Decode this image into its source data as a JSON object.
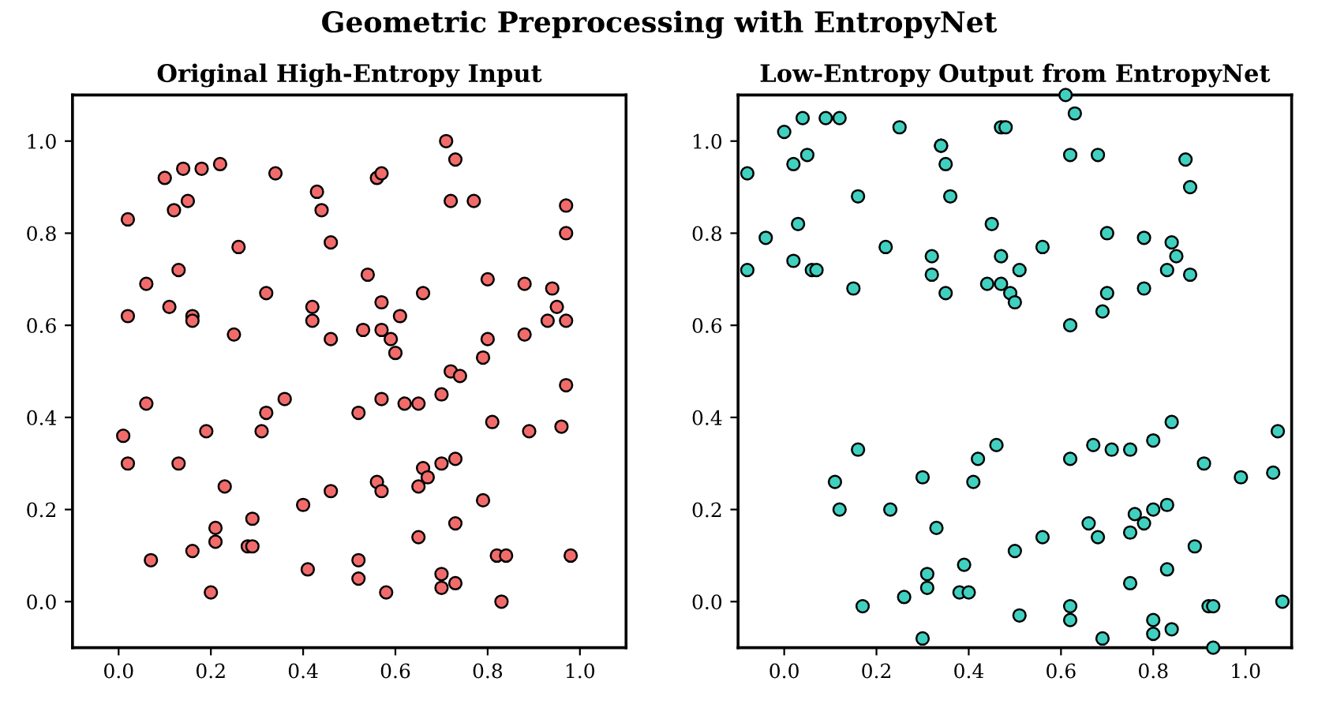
{
  "chart_data": [
    {
      "type": "scatter",
      "title": "Original High-Entropy Input",
      "annotations": [
        "Geometric Preprocessing with EntropyNet"
      ],
      "marker": "circle",
      "xlim": [
        -0.1,
        1.1
      ],
      "ylim": [
        -0.1,
        1.1
      ],
      "xticks": [
        {
          "value": 0,
          "label": "0.0"
        },
        {
          "value": 0.2,
          "label": "0.2"
        },
        {
          "value": 0.4,
          "label": "0.4"
        },
        {
          "value": 0.6,
          "label": "0.6"
        },
        {
          "value": 0.8,
          "label": "0.8"
        },
        {
          "value": 1,
          "label": "1.0"
        }
      ],
      "yticks": [
        {
          "value": 0,
          "label": "0.0"
        },
        {
          "value": 0.2,
          "label": "0.2"
        },
        {
          "value": 0.4,
          "label": "0.4"
        },
        {
          "value": 0.6,
          "label": "0.6"
        },
        {
          "value": 0.8,
          "label": "0.8"
        },
        {
          "value": 1,
          "label": "1.0"
        }
      ],
      "series": [
        {
          "color": "#f26b6b",
          "x": [
            0.2,
            0.28,
            0.29,
            0.29,
            0.23,
            0.19,
            0.13,
            0.02,
            0.01,
            0.06,
            0.31,
            0.32,
            0.36,
            0.4,
            0.41,
            0.46,
            0.46,
            0.25,
            0.42,
            0.42,
            0.32,
            0.16,
            0.16,
            0.11,
            0.02,
            0.06,
            0.13,
            0.26,
            0.46,
            0.44,
            0.43,
            0.34,
            0.22,
            0.18,
            0.14,
            0.1,
            0.15,
            0.12,
            0.02,
            0.21,
            0.21,
            0.16,
            0.07,
            0.71,
            0.73,
            0.56,
            0.57,
            0.72,
            0.77,
            0.97,
            0.97,
            0.54,
            0.8,
            0.88,
            0.94,
            0.95,
            0.66,
            0.57,
            0.61,
            0.53,
            0.57,
            0.59,
            0.6,
            0.93,
            0.97,
            0.88,
            0.8,
            0.79,
            0.72,
            0.74,
            0.97,
            0.7,
            0.65,
            0.62,
            0.57,
            0.52,
            0.81,
            0.89,
            0.96,
            0.73,
            0.7,
            0.66,
            0.67,
            0.65,
            0.56,
            0.57,
            0.79,
            0.73,
            0.65,
            0.52,
            0.52,
            0.82,
            0.84,
            0.98,
            0.7,
            0.7,
            0.73,
            0.58,
            0.83
          ],
          "values": [
            0.02,
            0.12,
            0.12,
            0.18,
            0.25,
            0.37,
            0.3,
            0.3,
            0.36,
            0.43,
            0.37,
            0.41,
            0.44,
            0.21,
            0.07,
            0.24,
            0.57,
            0.58,
            0.64,
            0.61,
            0.67,
            0.62,
            0.61,
            0.64,
            0.62,
            0.69,
            0.72,
            0.77,
            0.78,
            0.85,
            0.89,
            0.93,
            0.95,
            0.94,
            0.94,
            0.92,
            0.87,
            0.85,
            0.83,
            0.16,
            0.13,
            0.11,
            0.09,
            1.0,
            0.96,
            0.92,
            0.93,
            0.87,
            0.87,
            0.86,
            0.8,
            0.71,
            0.7,
            0.69,
            0.68,
            0.64,
            0.67,
            0.65,
            0.62,
            0.59,
            0.59,
            0.57,
            0.54,
            0.61,
            0.61,
            0.58,
            0.57,
            0.53,
            0.5,
            0.49,
            0.47,
            0.45,
            0.43,
            0.43,
            0.44,
            0.41,
            0.39,
            0.37,
            0.38,
            0.31,
            0.3,
            0.29,
            0.27,
            0.25,
            0.26,
            0.24,
            0.22,
            0.17,
            0.14,
            0.09,
            0.05,
            0.1,
            0.1,
            0.1,
            0.06,
            0.03,
            0.04,
            0.02,
            0.0
          ]
        }
      ]
    },
    {
      "type": "scatter",
      "title": "Low-Entropy Output from EntropyNet",
      "marker": "circle",
      "xlim": [
        -0.1,
        1.1
      ],
      "ylim": [
        -0.1,
        1.1
      ],
      "xticks": [
        {
          "value": 0,
          "label": "0.0"
        },
        {
          "value": 0.2,
          "label": "0.2"
        },
        {
          "value": 0.4,
          "label": "0.4"
        },
        {
          "value": 0.6,
          "label": "0.6"
        },
        {
          "value": 0.8,
          "label": "0.8"
        },
        {
          "value": 1,
          "label": "1.0"
        }
      ],
      "yticks": [
        {
          "value": 0,
          "label": "0.0"
        },
        {
          "value": 0.2,
          "label": "0.2"
        },
        {
          "value": 0.4,
          "label": "0.4"
        },
        {
          "value": 0.6,
          "label": "0.6"
        },
        {
          "value": 0.8,
          "label": "0.8"
        },
        {
          "value": 1,
          "label": "1.0"
        }
      ],
      "series": [
        {
          "color": "#40d0c0",
          "x": [
            -0.08,
            -0.08,
            -0.04,
            0.0,
            0.04,
            0.09,
            0.12,
            0.02,
            0.05,
            0.03,
            0.02,
            0.06,
            0.07,
            0.16,
            0.15,
            0.22,
            0.25,
            0.34,
            0.34,
            0.35,
            0.36,
            0.32,
            0.32,
            0.35,
            0.16,
            0.11,
            0.12,
            0.17,
            0.23,
            0.3,
            0.33,
            0.31,
            0.31,
            0.26,
            0.3,
            0.39,
            0.38,
            0.4,
            0.42,
            0.41,
            0.61,
            0.63,
            0.47,
            0.48,
            0.62,
            0.68,
            0.87,
            0.88,
            0.45,
            0.56,
            0.47,
            0.51,
            0.44,
            0.47,
            0.49,
            0.5,
            0.62,
            0.7,
            0.69,
            0.7,
            0.78,
            0.84,
            0.85,
            0.83,
            0.88,
            0.78,
            0.46,
            0.62,
            0.67,
            0.71,
            0.75,
            0.8,
            0.84,
            0.91,
            0.99,
            1.06,
            1.07,
            0.5,
            0.56,
            0.66,
            0.68,
            0.75,
            0.76,
            0.78,
            0.8,
            0.83,
            0.89,
            0.83,
            0.75,
            0.51,
            0.62,
            0.62,
            0.69,
            0.8,
            0.8,
            0.84,
            0.92,
            0.93,
            0.93,
            1.08
          ],
          "values": [
            0.93,
            0.72,
            0.79,
            1.02,
            1.05,
            1.05,
            1.05,
            0.95,
            0.97,
            0.82,
            0.74,
            0.72,
            0.72,
            0.88,
            0.68,
            0.77,
            1.03,
            0.99,
            0.99,
            0.95,
            0.88,
            0.75,
            0.71,
            0.67,
            0.33,
            0.26,
            0.2,
            -0.01,
            0.2,
            0.27,
            0.16,
            0.06,
            0.03,
            0.01,
            -0.08,
            0.08,
            0.02,
            0.02,
            0.31,
            0.26,
            1.1,
            1.06,
            1.03,
            1.03,
            0.97,
            0.97,
            0.96,
            0.9,
            0.82,
            0.77,
            0.75,
            0.72,
            0.69,
            0.69,
            0.67,
            0.65,
            0.6,
            0.8,
            0.63,
            0.67,
            0.79,
            0.78,
            0.75,
            0.72,
            0.71,
            0.68,
            0.34,
            0.31,
            0.34,
            0.33,
            0.33,
            0.35,
            0.39,
            0.3,
            0.27,
            0.28,
            0.37,
            0.11,
            0.14,
            0.17,
            0.14,
            0.15,
            0.19,
            0.17,
            0.2,
            0.21,
            0.12,
            0.07,
            0.04,
            -0.03,
            -0.01,
            -0.04,
            -0.08,
            -0.04,
            -0.07,
            -0.06,
            -0.01,
            -0.01,
            -0.1,
            0.0
          ]
        }
      ]
    }
  ]
}
